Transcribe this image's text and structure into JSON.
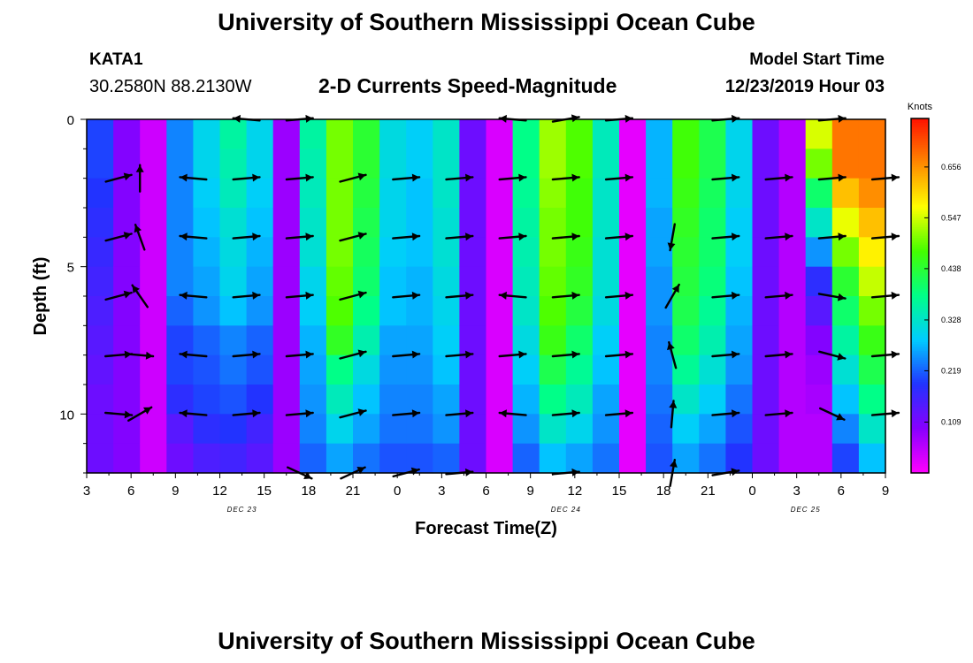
{
  "page": {
    "title_top": "University of Southern Mississippi Ocean Cube",
    "title_bottom": "University of Southern Mississippi Ocean Cube",
    "station_id": "KATA1",
    "station_coords": "30.2580N 88.2130W",
    "chart_title": "2-D Currents Speed-Magnitude",
    "model_start_label": "Model Start Time",
    "model_start_value": "12/23/2019 Hour 03"
  },
  "colors": {
    "palette": [
      "#ff00ff",
      "#8800ff",
      "#2233ff",
      "#00ccff",
      "#00ff88",
      "#44ff00",
      "#ffff00",
      "#ff8800",
      "#ff1100"
    ],
    "arrow": "#000000",
    "axis": "#000000"
  },
  "chart_data": {
    "type": "heatmap",
    "title": "2-D Currents Speed-Magnitude",
    "xlabel": "Forecast Time(Z)",
    "ylabel": "Depth (ft)",
    "x_ticks": [
      "3",
      "6",
      "9",
      "12",
      "15",
      "18",
      "21",
      "0",
      "3",
      "6",
      "9",
      "12",
      "15",
      "18",
      "21",
      "0",
      "3",
      "6",
      "9"
    ],
    "date_labels": [
      {
        "label": "DEC 23",
        "tick_index": 3.5
      },
      {
        "label": "DEC 24",
        "tick_index": 10.8
      },
      {
        "label": "DEC 25",
        "tick_index": 16.2
      }
    ],
    "y_ticks": [
      0,
      5,
      10
    ],
    "ylim": [
      0,
      12
    ],
    "colorbar": {
      "label": "Knots",
      "ticks": [
        0.109,
        0.219,
        0.328,
        0.438,
        0.547,
        0.656
      ],
      "tick_labels": [
        "0.109",
        "0.219",
        "0.328",
        "0.438",
        "0.547",
        "0.656"
      ],
      "range": [
        0.0,
        0.76
      ]
    },
    "speed_columns_knots": [
      [
        0.2,
        0.2,
        0.19,
        0.18,
        0.17,
        0.16,
        0.15,
        0.14,
        0.13,
        0.12,
        0.12,
        0.12
      ],
      [
        0.1,
        0.1,
        0.1,
        0.1,
        0.1,
        0.1,
        0.1,
        0.1,
        0.1,
        0.1,
        0.1,
        0.1
      ],
      [
        0.04,
        0.04,
        0.04,
        0.04,
        0.04,
        0.04,
        0.04,
        0.04,
        0.04,
        0.04,
        0.04,
        0.04
      ],
      [
        0.24,
        0.24,
        0.24,
        0.24,
        0.24,
        0.24,
        0.22,
        0.2,
        0.2,
        0.18,
        0.14,
        0.12
      ],
      [
        0.3,
        0.3,
        0.29,
        0.28,
        0.27,
        0.26,
        0.25,
        0.22,
        0.21,
        0.2,
        0.18,
        0.15
      ],
      [
        0.36,
        0.35,
        0.34,
        0.32,
        0.31,
        0.3,
        0.28,
        0.24,
        0.23,
        0.21,
        0.19,
        0.16
      ],
      [
        0.3,
        0.3,
        0.29,
        0.28,
        0.27,
        0.26,
        0.25,
        0.22,
        0.21,
        0.19,
        0.16,
        0.14
      ],
      [
        0.08,
        0.08,
        0.08,
        0.08,
        0.08,
        0.08,
        0.08,
        0.08,
        0.08,
        0.08,
        0.08,
        0.08
      ],
      [
        0.36,
        0.35,
        0.34,
        0.33,
        0.32,
        0.3,
        0.29,
        0.27,
        0.26,
        0.25,
        0.24,
        0.22
      ],
      [
        0.5,
        0.5,
        0.5,
        0.5,
        0.5,
        0.49,
        0.48,
        0.45,
        0.38,
        0.34,
        0.3,
        0.26
      ],
      [
        0.44,
        0.44,
        0.43,
        0.42,
        0.41,
        0.4,
        0.38,
        0.35,
        0.31,
        0.28,
        0.26,
        0.23
      ],
      [
        0.31,
        0.31,
        0.3,
        0.3,
        0.29,
        0.28,
        0.28,
        0.26,
        0.25,
        0.24,
        0.23,
        0.21
      ],
      [
        0.29,
        0.29,
        0.28,
        0.28,
        0.28,
        0.27,
        0.27,
        0.26,
        0.25,
        0.24,
        0.23,
        0.21
      ],
      [
        0.33,
        0.33,
        0.33,
        0.32,
        0.32,
        0.31,
        0.3,
        0.29,
        0.28,
        0.26,
        0.25,
        0.22
      ],
      [
        0.12,
        0.12,
        0.12,
        0.12,
        0.12,
        0.12,
        0.12,
        0.12,
        0.12,
        0.12,
        0.12,
        0.12
      ],
      [
        0.03,
        0.03,
        0.03,
        0.03,
        0.03,
        0.03,
        0.03,
        0.03,
        0.03,
        0.03,
        0.03,
        0.03
      ],
      [
        0.38,
        0.38,
        0.37,
        0.36,
        0.35,
        0.34,
        0.33,
        0.31,
        0.29,
        0.27,
        0.25,
        0.22
      ],
      [
        0.52,
        0.52,
        0.51,
        0.5,
        0.5,
        0.49,
        0.48,
        0.46,
        0.42,
        0.38,
        0.33,
        0.28
      ],
      [
        0.48,
        0.48,
        0.47,
        0.47,
        0.46,
        0.45,
        0.43,
        0.4,
        0.37,
        0.34,
        0.3,
        0.26
      ],
      [
        0.34,
        0.34,
        0.33,
        0.33,
        0.32,
        0.32,
        0.31,
        0.29,
        0.28,
        0.26,
        0.25,
        0.23
      ],
      [
        0.02,
        0.02,
        0.02,
        0.02,
        0.02,
        0.02,
        0.02,
        0.02,
        0.02,
        0.02,
        0.02,
        0.02
      ],
      [
        0.27,
        0.27,
        0.27,
        0.26,
        0.26,
        0.25,
        0.25,
        0.24,
        0.24,
        0.23,
        0.22,
        0.21
      ],
      [
        0.47,
        0.47,
        0.46,
        0.45,
        0.44,
        0.43,
        0.42,
        0.4,
        0.37,
        0.33,
        0.29,
        0.26
      ],
      [
        0.42,
        0.42,
        0.41,
        0.4,
        0.4,
        0.39,
        0.37,
        0.35,
        0.32,
        0.29,
        0.26,
        0.23
      ],
      [
        0.3,
        0.3,
        0.3,
        0.29,
        0.29,
        0.28,
        0.27,
        0.26,
        0.25,
        0.23,
        0.21,
        0.19
      ],
      [
        0.12,
        0.12,
        0.12,
        0.12,
        0.12,
        0.12,
        0.12,
        0.12,
        0.12,
        0.12,
        0.12,
        0.12
      ],
      [
        0.06,
        0.06,
        0.06,
        0.06,
        0.06,
        0.06,
        0.06,
        0.06,
        0.06,
        0.06,
        0.06,
        0.06
      ],
      [
        0.55,
        0.5,
        0.4,
        0.33,
        0.25,
        0.18,
        0.14,
        0.1,
        0.08,
        0.07,
        0.06,
        0.06
      ],
      [
        0.68,
        0.68,
        0.62,
        0.56,
        0.5,
        0.44,
        0.4,
        0.36,
        0.32,
        0.28,
        0.24,
        0.2
      ],
      [
        0.68,
        0.68,
        0.66,
        0.62,
        0.58,
        0.54,
        0.5,
        0.46,
        0.42,
        0.38,
        0.33,
        0.28
      ]
    ],
    "arrow_rows_ft": [
      0,
      2,
      4,
      6,
      8,
      10,
      12
    ],
    "arrow_columns": [
      {
        "x_index": 0.6,
        "angles_deg": [
          null,
          15,
          15,
          15,
          5,
          -5,
          null
        ]
      },
      {
        "x_index": 1.0,
        "angles_deg": [
          null,
          90,
          110,
          125,
          -5,
          30,
          null
        ]
      },
      {
        "x_index": 2.0,
        "angles_deg": [
          null,
          175,
          175,
          175,
          175,
          175,
          null
        ]
      },
      {
        "x_index": 3.0,
        "angles_deg": [
          175,
          5,
          5,
          5,
          5,
          5,
          null
        ]
      },
      {
        "x_index": 4.0,
        "angles_deg": [
          5,
          5,
          5,
          5,
          5,
          5,
          -25
        ]
      },
      {
        "x_index": 5.0,
        "angles_deg": [
          null,
          15,
          15,
          15,
          15,
          15,
          25
        ]
      },
      {
        "x_index": 6.0,
        "angles_deg": [
          null,
          5,
          5,
          5,
          5,
          5,
          15
        ]
      },
      {
        "x_index": 7.0,
        "angles_deg": [
          null,
          5,
          5,
          5,
          5,
          5,
          5
        ]
      },
      {
        "x_index": 8.0,
        "angles_deg": [
          175,
          5,
          5,
          175,
          5,
          175,
          null
        ]
      },
      {
        "x_index": 9.0,
        "angles_deg": [
          10,
          5,
          5,
          5,
          5,
          5,
          5
        ]
      },
      {
        "x_index": 10.0,
        "angles_deg": [
          5,
          5,
          5,
          5,
          5,
          5,
          null
        ]
      },
      {
        "x_index": 11.0,
        "angles_deg": [
          null,
          null,
          -100,
          60,
          105,
          85,
          80
        ]
      },
      {
        "x_index": 12.0,
        "angles_deg": [
          5,
          5,
          5,
          5,
          5,
          5,
          10
        ]
      },
      {
        "x_index": 13.0,
        "angles_deg": [
          null,
          5,
          5,
          5,
          5,
          5,
          null
        ]
      },
      {
        "x_index": 14.0,
        "angles_deg": [
          5,
          5,
          5,
          -10,
          -15,
          -25,
          null
        ]
      },
      {
        "x_index": 15.0,
        "angles_deg": [
          null,
          5,
          5,
          5,
          5,
          5,
          null
        ]
      }
    ]
  }
}
